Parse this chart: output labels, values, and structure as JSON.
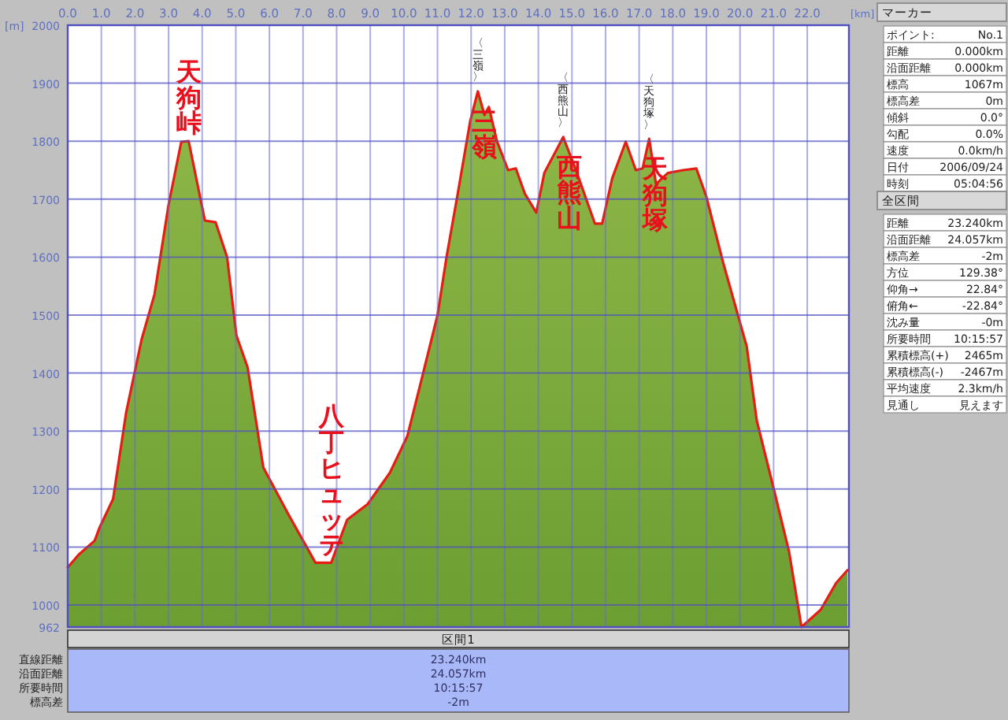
{
  "chart_data": [
    {
      "type": "area",
      "xlabel": "[km]",
      "ylabel": "[m]",
      "x": [
        0,
        0.33,
        0.8,
        0.94,
        1.35,
        1.74,
        2.2,
        2.58,
        3.0,
        3.38,
        3.6,
        4.08,
        4.4,
        4.74,
        5.02,
        5.35,
        5.82,
        6.58,
        7.37,
        7.84,
        8.31,
        8.92,
        9.58,
        10.1,
        10.5,
        11.0,
        11.27,
        11.6,
        11.97,
        12.2,
        12.4,
        12.53,
        12.77,
        13.1,
        13.33,
        13.6,
        13.94,
        14.18,
        14.74,
        15.1,
        15.68,
        15.9,
        16.2,
        16.6,
        16.9,
        17.1,
        17.3,
        17.5,
        17.85,
        18.3,
        18.7,
        19.0,
        19.5,
        20.2,
        20.5,
        21.0,
        21.46,
        21.83,
        22.4,
        22.86,
        23.2
      ],
      "series": [
        {
          "color": "#6c9e32",
          "values": [
            1065,
            1087,
            1111,
            1133,
            1183,
            1332,
            1459,
            1536,
            1690,
            1799,
            1800,
            1663,
            1660,
            1600,
            1465,
            1410,
            1237,
            1155,
            1073,
            1073,
            1147,
            1174,
            1228,
            1291,
            1383,
            1500,
            1600,
            1709,
            1834,
            1886,
            1845,
            1859,
            1800,
            1750,
            1753,
            1709,
            1677,
            1745,
            1807,
            1753,
            1658,
            1658,
            1736,
            1799,
            1750,
            1753,
            1804,
            1726,
            1745,
            1750,
            1753,
            1704,
            1590,
            1446,
            1318,
            1201,
            1092,
            962,
            992,
            1038,
            1060
          ]
        }
      ],
      "xlim": [
        0,
        23.24
      ],
      "ylim": [
        962,
        2000
      ],
      "xticks": [
        {
          "value": 0,
          "label": "0.0"
        },
        {
          "value": 1,
          "label": "1.0"
        },
        {
          "value": 2,
          "label": "2.0"
        },
        {
          "value": 3,
          "label": "3.0"
        },
        {
          "value": 4,
          "label": "4.0"
        },
        {
          "value": 5,
          "label": "5.0"
        },
        {
          "value": 6,
          "label": "6.0"
        },
        {
          "value": 7,
          "label": "7.0"
        },
        {
          "value": 8,
          "label": "8.0"
        },
        {
          "value": 9,
          "label": "9.0"
        },
        {
          "value": 10,
          "label": "10.0"
        },
        {
          "value": 11,
          "label": "11.0"
        },
        {
          "value": 12,
          "label": "12.0"
        },
        {
          "value": 13,
          "label": "13.0"
        },
        {
          "value": 14,
          "label": "14.0"
        },
        {
          "value": 15,
          "label": "15.0"
        },
        {
          "value": 16,
          "label": "16.0"
        },
        {
          "value": 17,
          "label": "17.0"
        },
        {
          "value": 18,
          "label": "18.0"
        },
        {
          "value": 19,
          "label": "19.0"
        },
        {
          "value": 20,
          "label": "20.0"
        },
        {
          "value": 21,
          "label": "21.0"
        },
        {
          "value": 22,
          "label": "22.0"
        }
      ],
      "yticks": [
        962,
        1000,
        1100,
        1200,
        1300,
        1400,
        1500,
        1600,
        1700,
        1800,
        1900,
        2000
      ],
      "grid": true,
      "annotations": [
        {
          "text": "天狗峠",
          "x": 3.6,
          "y": 1800
        },
        {
          "text": "三嶺",
          "x": 12.2,
          "y": 1886
        },
        {
          "text": "西熊山",
          "x": 14.74,
          "y": 1807
        },
        {
          "text": "天狗塚",
          "x": 17.3,
          "y": 1804
        },
        {
          "text": "八丁ヒュッテ",
          "x": 7.84,
          "y": 1073
        },
        {
          "text": "〈三嶺〉",
          "x": 12.2,
          "y": 1886
        },
        {
          "text": "〈西熊山〉",
          "x": 14.74,
          "y": 1807
        },
        {
          "text": "〈天狗塚〉",
          "x": 17.3,
          "y": 1804
        }
      ]
    },
    {
      "type": "other",
      "annotations": [
        "マーカー",
        "ポイント: No.1",
        "距離 0.000km",
        "沿面距離 0.000km",
        "標高 1067m",
        "標高差 0m",
        "傾斜 0.0°",
        "勾配 0.0%",
        "速度 0.0km/h",
        "日付 2006/09/24",
        "時刻 05:04:56",
        "全区間",
        "距離 23.240km",
        "沿面距離 24.057km",
        "標高差 -2m",
        "方位 129.38°",
        "仰角→ 22.84°",
        "俯角← -22.84°",
        "沈み量 -0m",
        "所要時間 10:15:57",
        "累積標高(+) 2465m",
        "累積標高(-) -2467m",
        "平均速度 2.3km/h",
        "見通し 見えます"
      ]
    },
    {
      "type": "other",
      "annotations": [
        "区間1",
        "直線距離 23.240km",
        "沿面距離 24.057km",
        "所要時間 10:15:57",
        "標高差 -2m"
      ]
    }
  ]
}
